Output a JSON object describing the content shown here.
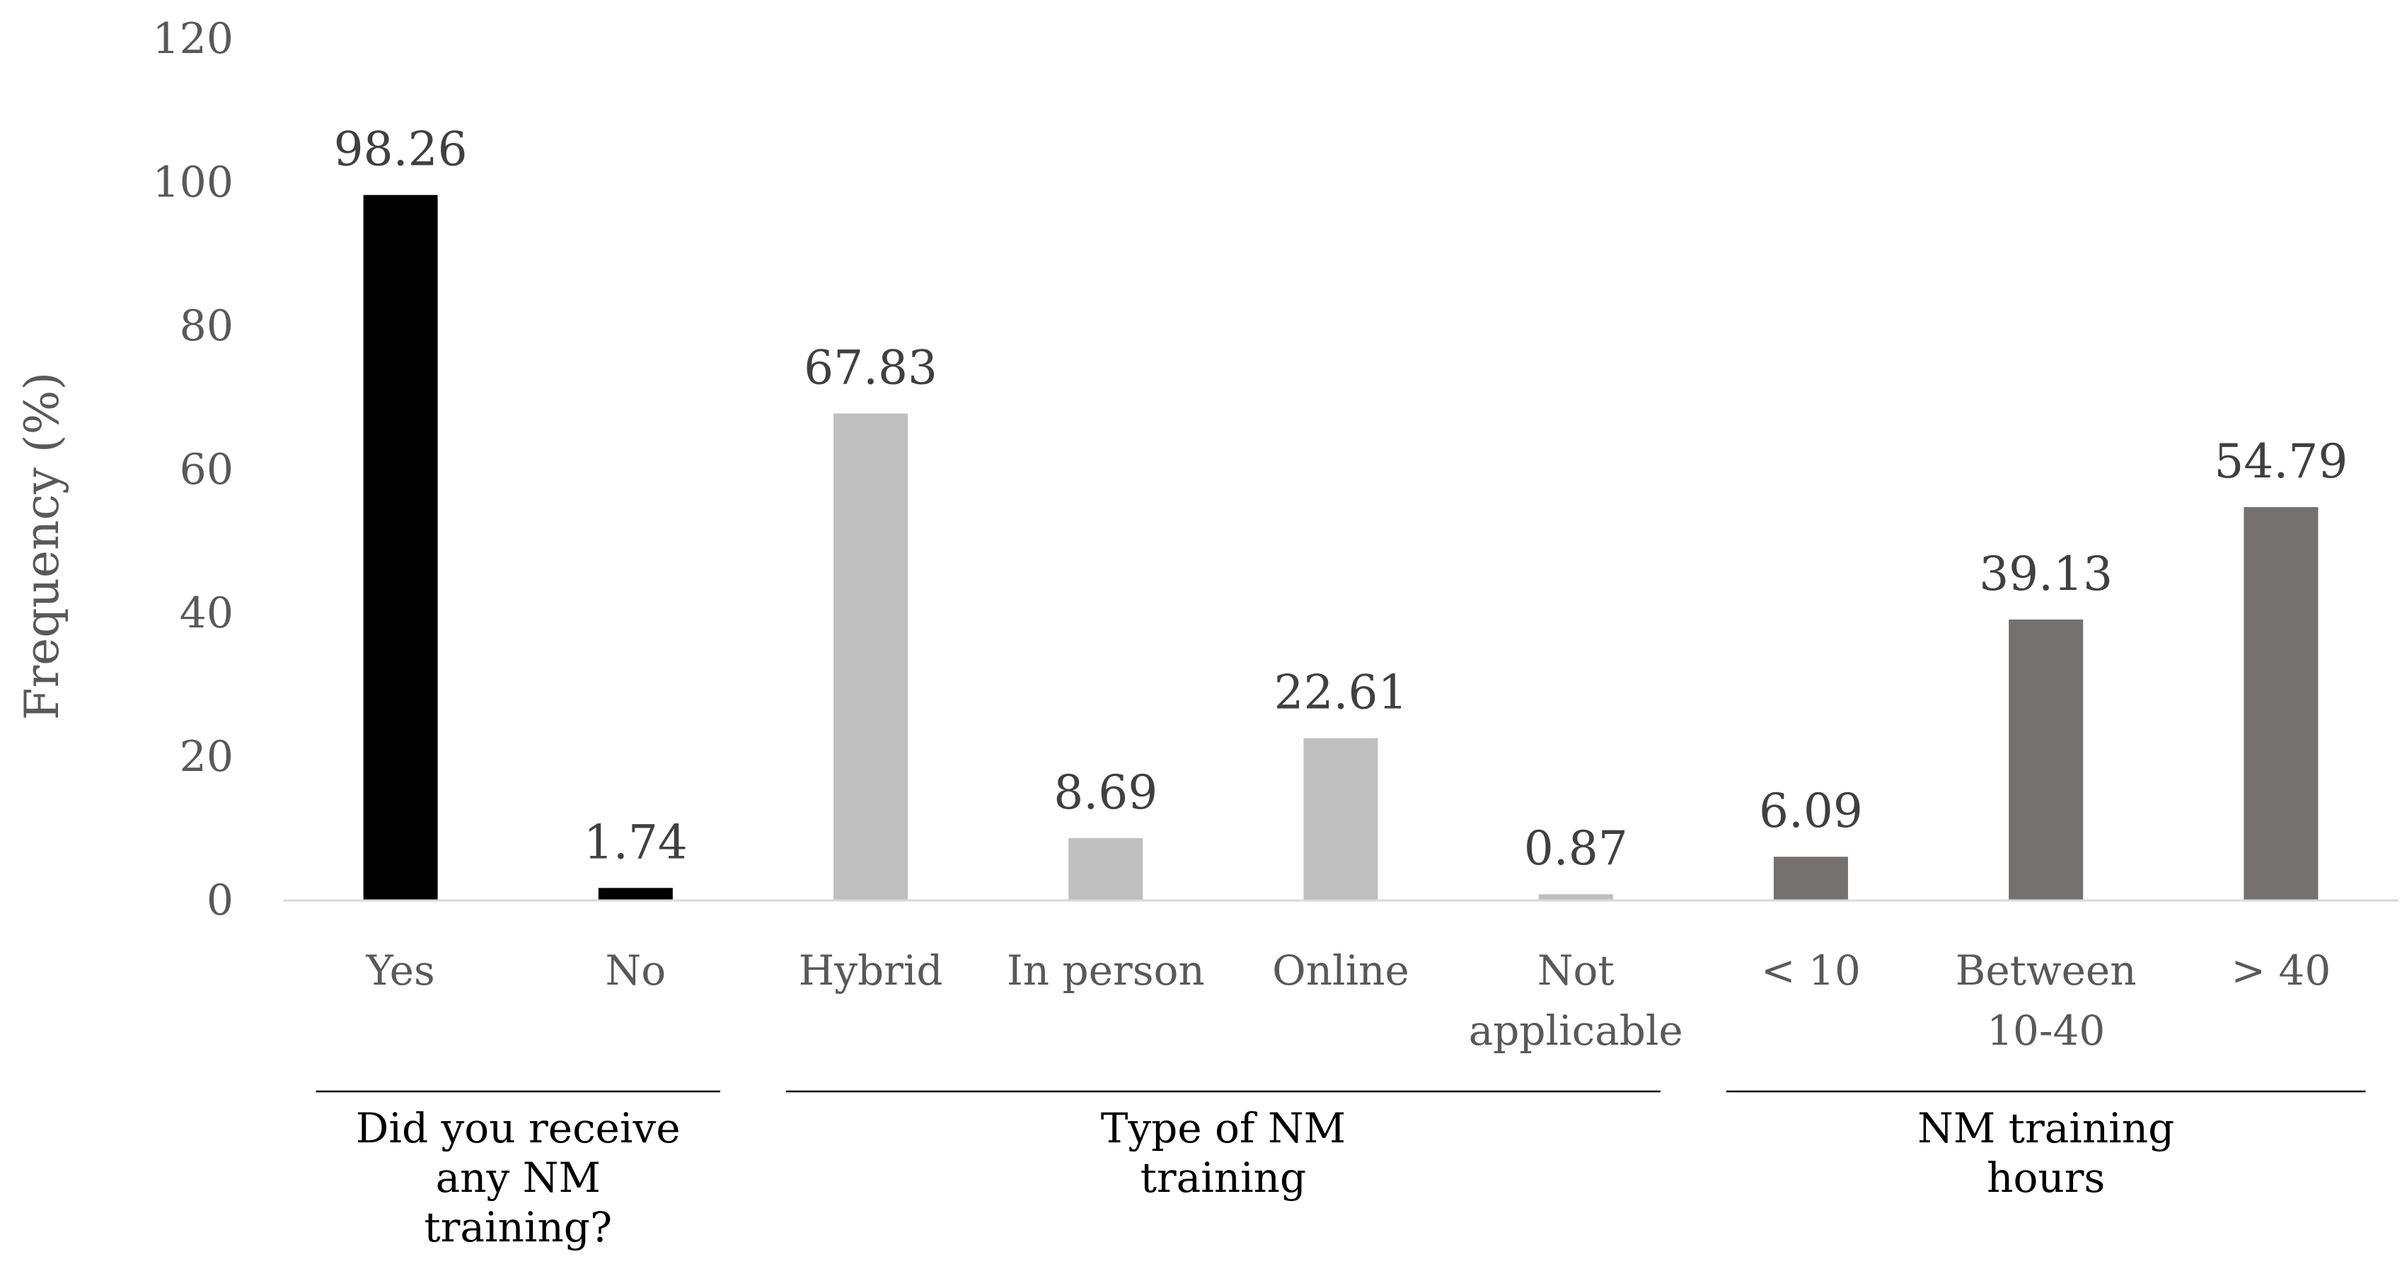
{
  "chart_data": {
    "type": "bar",
    "ylabel": "Frequency (%)",
    "ylim": [
      0,
      120
    ],
    "yticks": [
      "0",
      "20",
      "40",
      "60",
      "80",
      "100",
      "120"
    ],
    "grid": false,
    "bars": [
      {
        "label": [
          "Yes"
        ],
        "value": 98.26,
        "value_label": "98.26",
        "group": 0
      },
      {
        "label": [
          "No"
        ],
        "value": 1.74,
        "value_label": "1.74",
        "group": 0
      },
      {
        "label": [
          "Hybrid"
        ],
        "value": 67.83,
        "value_label": "67.83",
        "group": 1
      },
      {
        "label": [
          "In person"
        ],
        "value": 8.69,
        "value_label": "8.69",
        "group": 1
      },
      {
        "label": [
          "Online"
        ],
        "value": 22.61,
        "value_label": "22.61",
        "group": 1
      },
      {
        "label": [
          "Not",
          "applicable"
        ],
        "value": 0.87,
        "value_label": "0.87",
        "group": 1
      },
      {
        "label": [
          "< 10"
        ],
        "value": 6.09,
        "value_label": "6.09",
        "group": 2
      },
      {
        "label": [
          "Between",
          "10-40"
        ],
        "value": 39.13,
        "value_label": "39.13",
        "group": 2
      },
      {
        "label": [
          "> 40"
        ],
        "value": 54.79,
        "value_label": "54.79",
        "group": 2
      }
    ],
    "groups": [
      {
        "label": [
          "Did you receive",
          "any NM",
          "training?"
        ],
        "color": "#000000"
      },
      {
        "label": [
          "Type of NM",
          "training"
        ],
        "color": "#bfbfbf"
      },
      {
        "label": [
          "NM training",
          "hours"
        ],
        "color": "#767171"
      }
    ]
  }
}
